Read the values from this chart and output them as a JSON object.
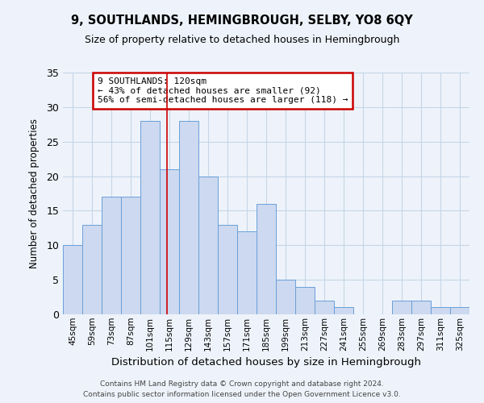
{
  "title": "9, SOUTHLANDS, HEMINGBROUGH, SELBY, YO8 6QY",
  "subtitle": "Size of property relative to detached houses in Hemingbrough",
  "xlabel": "Distribution of detached houses by size in Hemingbrough",
  "ylabel": "Number of detached properties",
  "bar_labels": [
    "45sqm",
    "59sqm",
    "73sqm",
    "87sqm",
    "101sqm",
    "115sqm",
    "129sqm",
    "143sqm",
    "157sqm",
    "171sqm",
    "185sqm",
    "199sqm",
    "213sqm",
    "227sqm",
    "241sqm",
    "255sqm",
    "269sqm",
    "283sqm",
    "297sqm",
    "311sqm",
    "325sqm"
  ],
  "bar_values": [
    10,
    13,
    17,
    17,
    28,
    21,
    28,
    20,
    13,
    12,
    16,
    5,
    4,
    2,
    1,
    0,
    0,
    2,
    2,
    1,
    1
  ],
  "bin_step": 14,
  "bar_color": "#ccd9f0",
  "bar_edge_color": "#6a9fd8",
  "grid_color": "#c5d5e8",
  "background_color": "#eef3fb",
  "red_line_x": 120,
  "annotation_text": "9 SOUTHLANDS: 120sqm\n← 43% of detached houses are smaller (92)\n56% of semi-detached houses are larger (118) →",
  "annotation_box_color": "#ffffff",
  "annotation_box_edge_color": "#cc0000",
  "ylim": [
    0,
    35
  ],
  "yticks": [
    0,
    5,
    10,
    15,
    20,
    25,
    30,
    35
  ],
  "footer_line1": "Contains HM Land Registry data © Crown copyright and database right 2024.",
  "footer_line2": "Contains public sector information licensed under the Open Government Licence v3.0."
}
